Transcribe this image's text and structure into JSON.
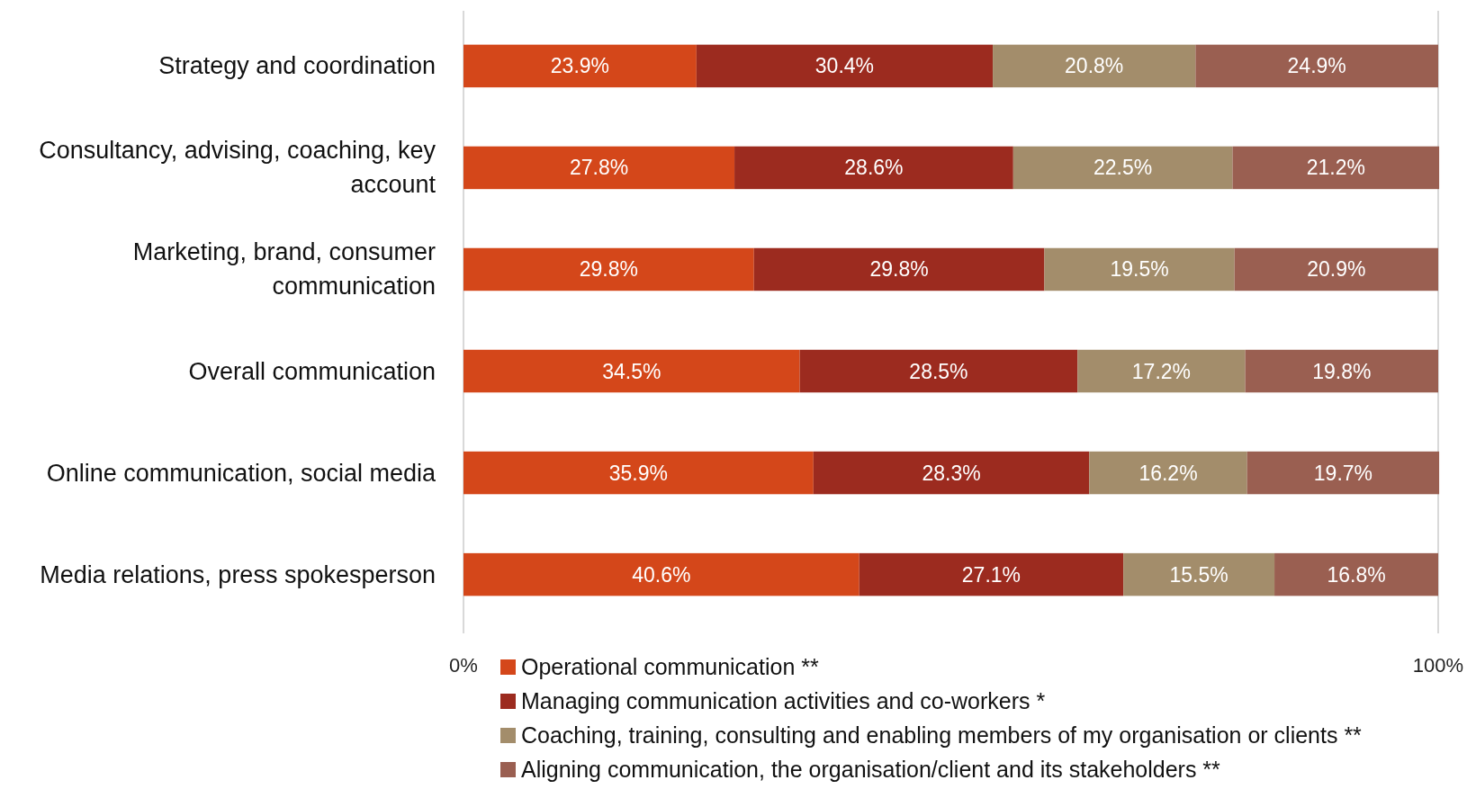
{
  "chart_data": {
    "type": "bar",
    "orientation": "horizontal",
    "stacked": true,
    "categories": [
      "Strategy and coordination",
      "Consultancy, advising, coaching, key account",
      "Marketing, brand, consumer communication",
      "Overall communication",
      "Online communication, social media",
      "Media relations, press spokesperson"
    ],
    "series": [
      {
        "name": "Operational communication **",
        "color": "#d4471a",
        "values": [
          23.9,
          27.8,
          29.8,
          34.5,
          35.9,
          40.6
        ],
        "value_labels": [
          "23.9%",
          "27.8%",
          "29.8%",
          "34.5%",
          "35.9%",
          "40.6%"
        ]
      },
      {
        "name": "Managing communication activities and co-workers *",
        "color": "#9c2b1f",
        "values": [
          30.4,
          28.6,
          29.8,
          28.5,
          28.3,
          27.1
        ],
        "value_labels": [
          "30.4%",
          "28.6%",
          "29.8%",
          "28.5%",
          "28.3%",
          "27.1%"
        ]
      },
      {
        "name": "Coaching, training, consulting and enabling members of my organisation or clients **",
        "color": "#a38d6b",
        "values": [
          20.8,
          22.5,
          19.5,
          17.2,
          16.2,
          15.5
        ],
        "value_labels": [
          "20.8%",
          "22.5%",
          "19.5%",
          "17.2%",
          "16.2%",
          "15.5%"
        ]
      },
      {
        "name": "Aligning communication, the organisation/client and its stakeholders **",
        "color": "#9a5f51",
        "values": [
          24.9,
          21.2,
          20.9,
          19.8,
          19.7,
          16.8
        ],
        "value_labels": [
          "24.9%",
          "21.2%",
          "20.9%",
          "19.8%",
          "19.7%",
          "16.8%"
        ]
      }
    ],
    "xlim": [
      0,
      100
    ],
    "xticks": [
      {
        "value": 0,
        "label": "0%"
      },
      {
        "value": 100,
        "label": "100%"
      }
    ],
    "legend": "bottom"
  }
}
